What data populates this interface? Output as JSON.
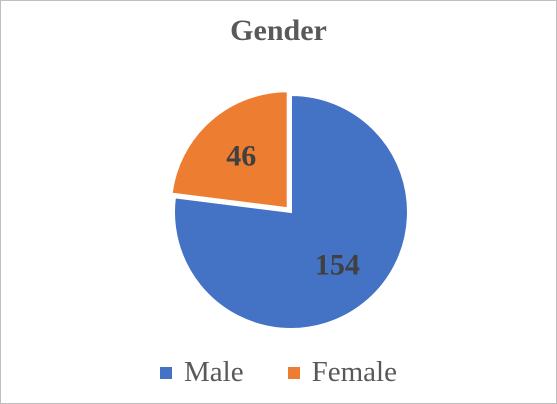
{
  "chart_data": {
    "type": "pie",
    "title": "Gender",
    "categories": [
      "Male",
      "Female"
    ],
    "values": [
      154,
      46
    ],
    "data_labels": [
      "154",
      "46"
    ],
    "colors": [
      "#4472C4",
      "#ED7D31"
    ],
    "exploded_slice": "Female",
    "start_angle_deg": 0,
    "legend_position": "bottom"
  }
}
